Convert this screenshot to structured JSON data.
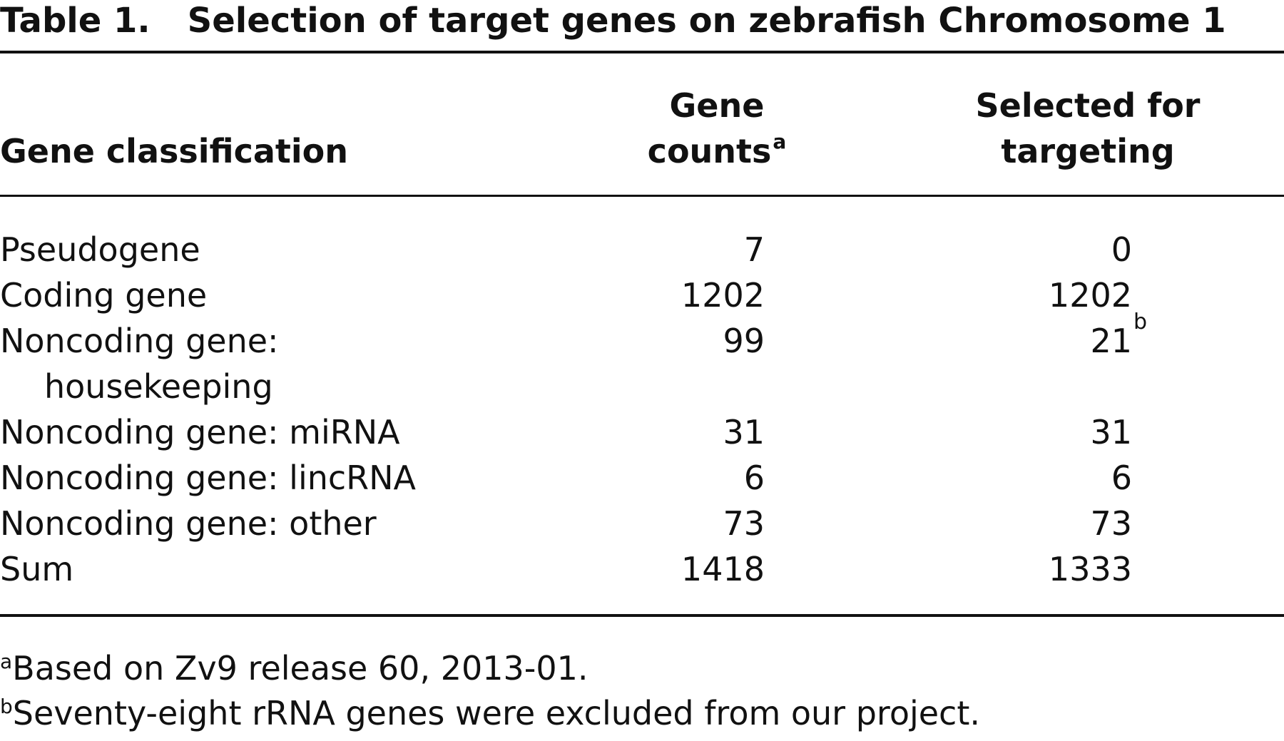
{
  "caption": {
    "label": "Table 1.",
    "title": "Selection of target genes on zebrafish Chromosome 1"
  },
  "headers": {
    "classification": "Gene classification",
    "counts_line1": "Gene",
    "counts_line2": "counts",
    "counts_footnote": "a",
    "selected_line1": "Selected for",
    "selected_line2": "targeting"
  },
  "rows": [
    {
      "classification": "Pseudogene",
      "classification_cont": "",
      "counts": "7",
      "selected": "0",
      "selected_footnote": ""
    },
    {
      "classification": "Coding gene",
      "classification_cont": "",
      "counts": "1202",
      "selected": "1202",
      "selected_footnote": ""
    },
    {
      "classification": "Noncoding gene:",
      "classification_cont": "housekeeping",
      "counts": "99",
      "selected": "21",
      "selected_footnote": "b"
    },
    {
      "classification": "Noncoding gene: miRNA",
      "classification_cont": "",
      "counts": "31",
      "selected": "31",
      "selected_footnote": ""
    },
    {
      "classification": "Noncoding gene: lincRNA",
      "classification_cont": "",
      "counts": "6",
      "selected": "6",
      "selected_footnote": ""
    },
    {
      "classification": "Noncoding gene: other",
      "classification_cont": "",
      "counts": "73",
      "selected": "73",
      "selected_footnote": ""
    },
    {
      "classification": "Sum",
      "classification_cont": "",
      "counts": "1418",
      "selected": "1333",
      "selected_footnote": ""
    }
  ],
  "footnotes": [
    {
      "marker": "a",
      "text": "Based on Zv9 release 60, 2013-01."
    },
    {
      "marker": "b",
      "text": "Seventy-eight rRNA genes were excluded from our project."
    }
  ]
}
